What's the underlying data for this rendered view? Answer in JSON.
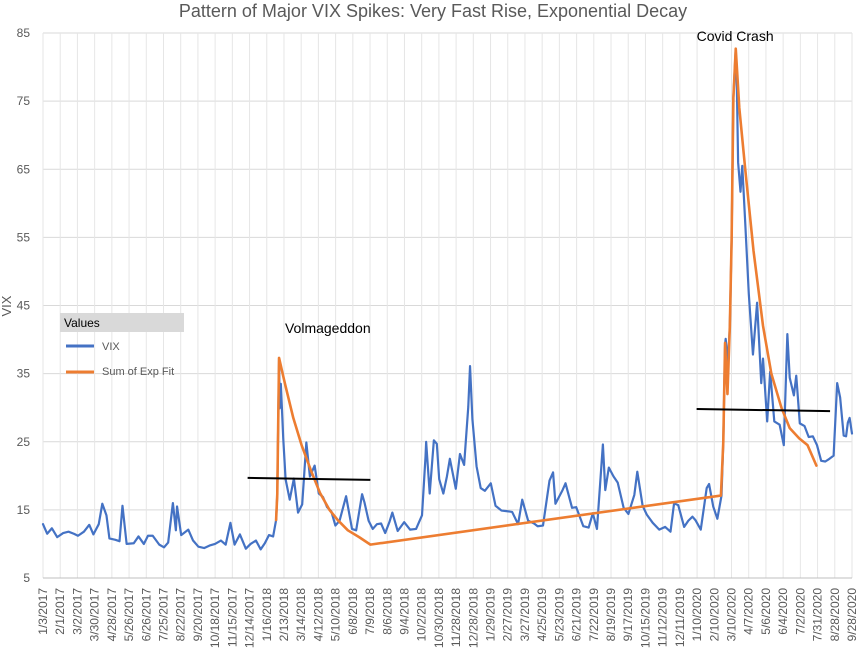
{
  "chart_data": {
    "type": "line",
    "title": "Pattern of Major VIX Spikes: Very Fast Rise, Exponential Decay",
    "xlabel": "",
    "ylabel": "VIX",
    "ylim": [
      5,
      85
    ],
    "yticks": [
      5,
      15,
      25,
      35,
      45,
      55,
      65,
      75,
      85
    ],
    "xlim": [
      "2017-01-03",
      "2020-09-28"
    ],
    "xtick_labels": [
      "1/3/2017",
      "2/1/2017",
      "3/2/2017",
      "3/30/2017",
      "4/28/2017",
      "5/26/2017",
      "6/26/2017",
      "7/25/2017",
      "8/22/2017",
      "9/20/2017",
      "10/18/2017",
      "11/15/2017",
      "12/14/2017",
      "1/16/2018",
      "2/13/2018",
      "3/14/2018",
      "4/12/2018",
      "5/10/2018",
      "6/8/2018",
      "7/9/2018",
      "8/6/2018",
      "9/4/2018",
      "10/2/2018",
      "10/30/2018",
      "11/28/2018",
      "12/28/2018",
      "1/29/2019",
      "2/27/2019",
      "3/27/2019",
      "4/25/2019",
      "5/23/2019",
      "6/21/2019",
      "7/22/2019",
      "8/19/2019",
      "9/17/2019",
      "10/15/2019",
      "11/12/2019",
      "12/11/2019",
      "1/10/2020",
      "2/10/2020",
      "3/10/2020",
      "4/7/2020",
      "5/6/2020",
      "6/4/2020",
      "7/2/2020",
      "7/31/2020",
      "8/28/2020",
      "9/28/2020"
    ],
    "grid": true,
    "legend": {
      "title": "Values",
      "position": "left",
      "entries": [
        {
          "name": "VIX",
          "color": "#4472C4"
        },
        {
          "name": "Sum of Exp Fit",
          "color": "#ED7D31"
        }
      ]
    },
    "series": [
      {
        "name": "VIX",
        "color": "#4472C4",
        "points": [
          [
            "2017-01-03",
            12.9
          ],
          [
            "2017-01-10",
            11.5
          ],
          [
            "2017-01-18",
            12.3
          ],
          [
            "2017-01-27",
            11.0
          ],
          [
            "2017-02-06",
            11.6
          ],
          [
            "2017-02-15",
            11.8
          ],
          [
            "2017-02-24",
            11.5
          ],
          [
            "2017-03-03",
            11.2
          ],
          [
            "2017-03-13",
            11.8
          ],
          [
            "2017-03-22",
            12.8
          ],
          [
            "2017-03-29",
            11.4
          ],
          [
            "2017-04-07",
            12.9
          ],
          [
            "2017-04-13",
            15.9
          ],
          [
            "2017-04-20",
            14.2
          ],
          [
            "2017-04-25",
            10.8
          ],
          [
            "2017-05-05",
            10.6
          ],
          [
            "2017-05-12",
            10.4
          ],
          [
            "2017-05-17",
            15.6
          ],
          [
            "2017-05-24",
            10.0
          ],
          [
            "2017-06-05",
            10.1
          ],
          [
            "2017-06-13",
            11.1
          ],
          [
            "2017-06-22",
            10.0
          ],
          [
            "2017-06-29",
            11.2
          ],
          [
            "2017-07-07",
            11.2
          ],
          [
            "2017-07-18",
            9.9
          ],
          [
            "2017-07-26",
            9.5
          ],
          [
            "2017-08-02",
            10.2
          ],
          [
            "2017-08-10",
            16.0
          ],
          [
            "2017-08-15",
            12.0
          ],
          [
            "2017-08-17",
            15.5
          ],
          [
            "2017-08-24",
            11.3
          ],
          [
            "2017-09-05",
            12.1
          ],
          [
            "2017-09-13",
            10.5
          ],
          [
            "2017-09-22",
            9.6
          ],
          [
            "2017-10-02",
            9.4
          ],
          [
            "2017-10-12",
            9.8
          ],
          [
            "2017-10-20",
            10.0
          ],
          [
            "2017-10-30",
            10.5
          ],
          [
            "2017-11-07",
            9.9
          ],
          [
            "2017-11-15",
            13.1
          ],
          [
            "2017-11-22",
            9.9
          ],
          [
            "2017-12-01",
            11.4
          ],
          [
            "2017-12-11",
            9.3
          ],
          [
            "2017-12-19",
            10.0
          ],
          [
            "2017-12-28",
            10.5
          ],
          [
            "2018-01-05",
            9.2
          ],
          [
            "2018-01-12",
            10.1
          ],
          [
            "2018-01-19",
            11.3
          ],
          [
            "2018-01-26",
            11.1
          ],
          [
            "2018-01-31",
            13.5
          ],
          [
            "2018-02-02",
            17.3
          ],
          [
            "2018-02-05",
            37.3
          ],
          [
            "2018-02-06",
            29.9
          ],
          [
            "2018-02-08",
            33.5
          ],
          [
            "2018-02-12",
            25.6
          ],
          [
            "2018-02-16",
            19.5
          ],
          [
            "2018-02-23",
            16.5
          ],
          [
            "2018-03-02",
            19.6
          ],
          [
            "2018-03-09",
            14.6
          ],
          [
            "2018-03-16",
            15.8
          ],
          [
            "2018-03-23",
            24.9
          ],
          [
            "2018-03-29",
            19.9
          ],
          [
            "2018-04-06",
            21.5
          ],
          [
            "2018-04-13",
            17.4
          ],
          [
            "2018-04-20",
            16.9
          ],
          [
            "2018-04-27",
            15.4
          ],
          [
            "2018-05-04",
            14.8
          ],
          [
            "2018-05-11",
            12.7
          ],
          [
            "2018-05-18",
            13.4
          ],
          [
            "2018-05-29",
            17.0
          ],
          [
            "2018-06-08",
            12.2
          ],
          [
            "2018-06-15",
            12.0
          ],
          [
            "2018-06-25",
            17.3
          ],
          [
            "2018-06-29",
            16.1
          ],
          [
            "2018-07-06",
            13.4
          ],
          [
            "2018-07-13",
            12.2
          ],
          [
            "2018-07-20",
            12.9
          ],
          [
            "2018-07-27",
            13.0
          ],
          [
            "2018-08-03",
            11.6
          ],
          [
            "2018-08-10",
            13.2
          ],
          [
            "2018-08-15",
            14.6
          ],
          [
            "2018-08-24",
            11.9
          ],
          [
            "2018-09-04",
            13.2
          ],
          [
            "2018-09-14",
            12.1
          ],
          [
            "2018-09-24",
            12.2
          ],
          [
            "2018-10-04",
            14.2
          ],
          [
            "2018-10-10",
            22.9
          ],
          [
            "2018-10-11",
            24.98
          ],
          [
            "2018-10-17",
            17.4
          ],
          [
            "2018-10-24",
            25.2
          ],
          [
            "2018-10-29",
            24.7
          ],
          [
            "2018-11-02",
            19.5
          ],
          [
            "2018-11-09",
            17.4
          ],
          [
            "2018-11-15",
            19.9
          ],
          [
            "2018-11-20",
            22.5
          ],
          [
            "2018-11-30",
            18.1
          ],
          [
            "2018-12-07",
            23.2
          ],
          [
            "2018-12-14",
            21.6
          ],
          [
            "2018-12-21",
            30.1
          ],
          [
            "2018-12-24",
            36.1
          ],
          [
            "2018-12-28",
            28.3
          ],
          [
            "2019-01-04",
            21.4
          ],
          [
            "2019-01-11",
            18.2
          ],
          [
            "2019-01-18",
            17.8
          ],
          [
            "2019-01-28",
            18.9
          ],
          [
            "2019-02-05",
            15.6
          ],
          [
            "2019-02-15",
            14.9
          ],
          [
            "2019-02-25",
            14.8
          ],
          [
            "2019-03-05",
            14.7
          ],
          [
            "2019-03-15",
            12.9
          ],
          [
            "2019-03-22",
            16.5
          ],
          [
            "2019-04-01",
            13.4
          ],
          [
            "2019-04-11",
            13.0
          ],
          [
            "2019-04-17",
            12.6
          ],
          [
            "2019-04-26",
            12.7
          ],
          [
            "2019-05-07",
            19.3
          ],
          [
            "2019-05-13",
            20.5
          ],
          [
            "2019-05-17",
            15.9
          ],
          [
            "2019-05-29",
            17.9
          ],
          [
            "2019-06-03",
            18.9
          ],
          [
            "2019-06-14",
            15.3
          ],
          [
            "2019-06-21",
            15.4
          ],
          [
            "2019-07-03",
            12.6
          ],
          [
            "2019-07-12",
            12.4
          ],
          [
            "2019-07-19",
            14.5
          ],
          [
            "2019-07-26",
            12.2
          ],
          [
            "2019-08-05",
            24.6
          ],
          [
            "2019-08-09",
            17.9
          ],
          [
            "2019-08-15",
            21.2
          ],
          [
            "2019-08-23",
            19.9
          ],
          [
            "2019-08-30",
            19.0
          ],
          [
            "2019-09-09",
            15.3
          ],
          [
            "2019-09-17",
            14.4
          ],
          [
            "2019-09-27",
            17.2
          ],
          [
            "2019-10-02",
            20.6
          ],
          [
            "2019-10-11",
            15.6
          ],
          [
            "2019-10-18",
            14.3
          ],
          [
            "2019-10-28",
            13.1
          ],
          [
            "2019-11-08",
            12.1
          ],
          [
            "2019-11-18",
            12.5
          ],
          [
            "2019-11-27",
            11.8
          ],
          [
            "2019-12-03",
            15.96
          ],
          [
            "2019-12-10",
            15.7
          ],
          [
            "2019-12-20",
            12.5
          ],
          [
            "2019-12-27",
            13.4
          ],
          [
            "2020-01-03",
            14.0
          ],
          [
            "2020-01-08",
            13.5
          ],
          [
            "2020-01-17",
            12.1
          ],
          [
            "2020-01-27",
            18.2
          ],
          [
            "2020-01-31",
            18.8
          ],
          [
            "2020-02-07",
            15.5
          ],
          [
            "2020-02-14",
            13.7
          ],
          [
            "2020-02-21",
            17.1
          ],
          [
            "2020-02-24",
            25.0
          ],
          [
            "2020-02-27",
            39.2
          ],
          [
            "2020-02-28",
            40.1
          ],
          [
            "2020-03-03",
            36.8
          ],
          [
            "2020-03-06",
            41.9
          ],
          [
            "2020-03-09",
            54.5
          ],
          [
            "2020-03-12",
            75.5
          ],
          [
            "2020-03-16",
            82.7
          ],
          [
            "2020-03-18",
            76.5
          ],
          [
            "2020-03-20",
            66.0
          ],
          [
            "2020-03-24",
            61.7
          ],
          [
            "2020-03-27",
            65.5
          ],
          [
            "2020-04-01",
            57.1
          ],
          [
            "2020-04-07",
            46.7
          ],
          [
            "2020-04-14",
            37.8
          ],
          [
            "2020-04-21",
            45.4
          ],
          [
            "2020-04-28",
            33.6
          ],
          [
            "2020-05-01",
            37.2
          ],
          [
            "2020-05-08",
            27.98
          ],
          [
            "2020-05-13",
            35.3
          ],
          [
            "2020-05-20",
            27.99
          ],
          [
            "2020-05-29",
            27.5
          ],
          [
            "2020-06-05",
            24.5
          ],
          [
            "2020-06-11",
            40.8
          ],
          [
            "2020-06-15",
            34.4
          ],
          [
            "2020-06-22",
            31.8
          ],
          [
            "2020-06-26",
            34.7
          ],
          [
            "2020-07-02",
            27.7
          ],
          [
            "2020-07-10",
            27.3
          ],
          [
            "2020-07-17",
            25.7
          ],
          [
            "2020-07-24",
            25.8
          ],
          [
            "2020-07-31",
            24.5
          ],
          [
            "2020-08-07",
            22.2
          ],
          [
            "2020-08-14",
            22.1
          ],
          [
            "2020-08-21",
            22.5
          ],
          [
            "2020-08-28",
            22.96
          ],
          [
            "2020-09-03",
            33.6
          ],
          [
            "2020-09-08",
            31.5
          ],
          [
            "2020-09-14",
            25.9
          ],
          [
            "2020-09-18",
            25.8
          ],
          [
            "2020-09-21",
            27.8
          ],
          [
            "2020-09-24",
            28.5
          ],
          [
            "2020-09-28",
            26.2
          ]
        ]
      },
      {
        "name": "Sum of Exp Fit",
        "color": "#ED7D31",
        "points": [
          [
            "2018-01-31",
            13.5
          ],
          [
            "2018-02-02",
            17.3
          ],
          [
            "2018-02-05",
            37.3
          ],
          [
            "2018-02-15",
            33.5
          ],
          [
            "2018-03-01",
            28.5
          ],
          [
            "2018-03-15",
            24.5
          ],
          [
            "2018-04-01",
            20.5
          ],
          [
            "2018-04-15",
            17.5
          ],
          [
            "2018-05-01",
            15.0
          ],
          [
            "2018-05-15",
            13.5
          ],
          [
            "2018-06-01",
            12.0
          ],
          [
            "2018-06-20",
            11.0
          ],
          [
            "2018-07-09",
            9.9
          ],
          [
            "2020-02-20",
            17.1
          ],
          [
            "2020-02-24",
            25.0
          ],
          [
            "2020-02-27",
            39.5
          ],
          [
            "2020-03-02",
            32.0
          ],
          [
            "2020-03-06",
            41.9
          ],
          [
            "2020-03-09",
            54.5
          ],
          [
            "2020-03-12",
            75.5
          ],
          [
            "2020-03-16",
            82.7
          ],
          [
            "2020-03-22",
            74.0
          ],
          [
            "2020-04-01",
            65.0
          ],
          [
            "2020-04-15",
            53.0
          ],
          [
            "2020-05-01",
            42.0
          ],
          [
            "2020-05-15",
            35.0
          ],
          [
            "2020-06-01",
            30.0
          ],
          [
            "2020-06-15",
            27.0
          ],
          [
            "2020-07-01",
            25.5
          ],
          [
            "2020-07-15",
            24.5
          ],
          [
            "2020-07-30",
            21.5
          ]
        ]
      }
    ],
    "reference_lines": [
      {
        "x1": "2017-12-14",
        "y1": 19.7,
        "x2": "2018-07-09",
        "y2": 19.4,
        "color": "#000000"
      },
      {
        "x1": "2020-01-10",
        "y1": 29.8,
        "x2": "2020-08-22",
        "y2": 29.5,
        "color": "#000000"
      }
    ],
    "annotations": [
      {
        "text": "Volmageddon",
        "x": "2018-02-15",
        "y": 41
      },
      {
        "text": "Covid Crash",
        "x": "2020-01-10",
        "y": 83.8
      }
    ]
  }
}
